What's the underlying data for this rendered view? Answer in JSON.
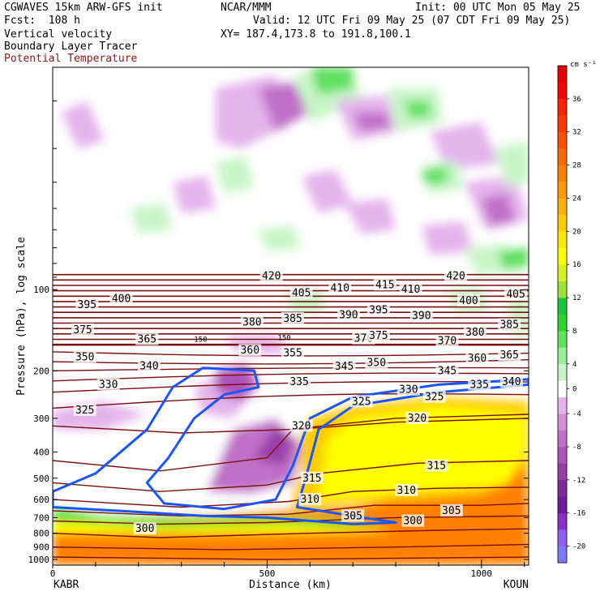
{
  "header": {
    "model": "CGWAVES 15km ARW-GFS init",
    "org": "NCAR/MMM",
    "init": "Init: 00 UTC Mon 05 May 25",
    "fcst": "Fcst:  108 h",
    "valid": "Valid: 12 UTC Fri 09 May 25 (07 CDT Fri 09 May 25)",
    "field1": "Vertical velocity",
    "xy": "XY= 187.4,173.8 to 191.8,100.1",
    "field2": "Boundary Layer Tracer",
    "field3": "Potential Temperature"
  },
  "colors": {
    "theta": "#7a0f0f",
    "tracer": "#1a55ff",
    "field3_label": "#8b1a1a"
  },
  "chart_data": {
    "type": "heatmap",
    "xlabel": "Distance (km)",
    "ylabel": "Pressure (hPa), log scale",
    "xlim": [
      0,
      1110
    ],
    "ylim": [
      1050,
      15
    ],
    "x_ticks": [
      0,
      500,
      1000
    ],
    "y_ticks": [
      100,
      200,
      300,
      400,
      500,
      600,
      700,
      800,
      900,
      1000
    ],
    "y_scale": "log",
    "endpoints": {
      "left": "KABR",
      "right": "KOUN"
    },
    "colorbar": {
      "unit": "cm s⁻¹",
      "labels": [
        "36",
        "32",
        "28",
        "24",
        "20",
        "16",
        "12",
        "8",
        "4",
        "0",
        "-4",
        "-8",
        "-12",
        "-16",
        "-20"
      ],
      "levels": [
        -22,
        -20,
        -18,
        -16,
        -14,
        -12,
        -10,
        -8,
        -6,
        -4,
        -2,
        2,
        4,
        6,
        8,
        10,
        12,
        14,
        16,
        18,
        20,
        22,
        24,
        26,
        28,
        30,
        32,
        34,
        36,
        38,
        40
      ],
      "colors": [
        "#7b7bf7",
        "#8f5ff0",
        "#8a2fc9",
        "#6e1a9c",
        "#7f2a96",
        "#9a3ca8",
        "#ad52b8",
        "#bf6fc8",
        "#d28ed8",
        "#e4b3ec",
        "#ffffff",
        "#c8f5c8",
        "#99ee99",
        "#5fe05f",
        "#2dd62d",
        "#17c43a",
        "#9be13a",
        "#d7f01f",
        "#ffff00",
        "#ffe600",
        "#ffcc00",
        "#ffb000",
        "#ff9900",
        "#ff8000",
        "#ff6a00",
        "#ff5000",
        "#ff3a00",
        "#ff2000",
        "#ff0000",
        "#e60000"
      ]
    },
    "theta_contours_K": [
      300,
      305,
      310,
      315,
      320,
      325,
      330,
      335,
      340,
      345,
      350,
      355,
      360,
      365,
      370,
      375,
      380,
      385,
      390,
      395,
      400,
      405,
      410,
      415,
      420
    ],
    "theta_labels": [
      {
        "label": "300",
        "x": 215,
        "p": 770
      },
      {
        "label": "300",
        "x": 840,
        "p": 720
      },
      {
        "label": "305",
        "x": 700,
        "p": 690
      },
      {
        "label": "305",
        "x": 930,
        "p": 660
      },
      {
        "label": "310",
        "x": 600,
        "p": 600
      },
      {
        "label": "310",
        "x": 825,
        "p": 555
      },
      {
        "label": "315",
        "x": 605,
        "p": 500
      },
      {
        "label": "315",
        "x": 895,
        "p": 450
      },
      {
        "label": "320",
        "x": 580,
        "p": 320
      },
      {
        "label": "320",
        "x": 850,
        "p": 300
      },
      {
        "label": "325",
        "x": 75,
        "p": 280
      },
      {
        "label": "325",
        "x": 720,
        "p": 260
      },
      {
        "label": "325",
        "x": 890,
        "p": 250
      },
      {
        "label": "330",
        "x": 130,
        "p": 225
      },
      {
        "label": "330",
        "x": 830,
        "p": 235
      },
      {
        "label": "335",
        "x": 575,
        "p": 220
      },
      {
        "label": "335",
        "x": 995,
        "p": 225
      },
      {
        "label": "340",
        "x": 225,
        "p": 192
      },
      {
        "label": "340",
        "x": 1070,
        "p": 220
      },
      {
        "label": "345",
        "x": 680,
        "p": 193
      },
      {
        "label": "345",
        "x": 920,
        "p": 200
      },
      {
        "label": "350",
        "x": 75,
        "p": 178
      },
      {
        "label": "350",
        "x": 755,
        "p": 187
      },
      {
        "label": "355",
        "x": 560,
        "p": 172
      },
      {
        "label": "360",
        "x": 460,
        "p": 168
      },
      {
        "label": "360",
        "x": 990,
        "p": 180
      },
      {
        "label": "365",
        "x": 1065,
        "p": 175
      },
      {
        "label": "365",
        "x": 220,
        "p": 153
      },
      {
        "label": "370",
        "x": 725,
        "p": 152
      },
      {
        "label": "370",
        "x": 920,
        "p": 155
      },
      {
        "label": "375",
        "x": 70,
        "p": 141
      },
      {
        "label": "375",
        "x": 760,
        "p": 148
      },
      {
        "label": "380",
        "x": 465,
        "p": 132
      },
      {
        "label": "380",
        "x": 985,
        "p": 144
      },
      {
        "label": "385",
        "x": 560,
        "p": 128
      },
      {
        "label": "385",
        "x": 1065,
        "p": 135
      },
      {
        "label": "390",
        "x": 690,
        "p": 124
      },
      {
        "label": "390",
        "x": 860,
        "p": 125
      },
      {
        "label": "395",
        "x": 80,
        "p": 114
      },
      {
        "label": "395",
        "x": 760,
        "p": 119
      },
      {
        "label": "400",
        "x": 160,
        "p": 108
      },
      {
        "label": "400",
        "x": 970,
        "p": 110
      },
      {
        "label": "405",
        "x": 580,
        "p": 103
      },
      {
        "label": "405",
        "x": 1080,
        "p": 104
      },
      {
        "label": "410",
        "x": 670,
        "p": 99
      },
      {
        "label": "410",
        "x": 835,
        "p": 100
      },
      {
        "label": "415",
        "x": 775,
        "p": 96
      },
      {
        "label": "420",
        "x": 510,
        "p": 89
      },
      {
        "label": "420",
        "x": 940,
        "p": 89
      }
    ],
    "tracer_labels": [
      {
        "label": "150",
        "x": 345,
        "p": 153
      },
      {
        "label": "150",
        "x": 540,
        "p": 151
      }
    ]
  }
}
